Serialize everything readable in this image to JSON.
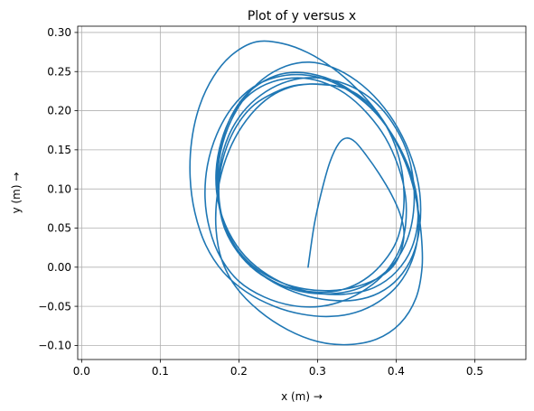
{
  "chart_data": {
    "type": "line",
    "title": "Plot of y versus x",
    "xlabel": "x (m)  →",
    "ylabel": "y (m)  →",
    "xlim": [
      -0.005,
      0.565
    ],
    "ylim": [
      -0.118,
      0.308
    ],
    "grid": true,
    "xticks": [
      0.0,
      0.1,
      0.2,
      0.3,
      0.4,
      0.5
    ],
    "xtick_labels": [
      "0.0",
      "0.1",
      "0.2",
      "0.3",
      "0.4",
      "0.5"
    ],
    "yticks": [
      -0.1,
      -0.05,
      0.0,
      0.05,
      0.1,
      0.15,
      0.2,
      0.25,
      0.3
    ],
    "ytick_labels": [
      "−0.10",
      "−0.05",
      "0.00",
      "0.05",
      "0.10",
      "0.15",
      "0.20",
      "0.25",
      "0.30"
    ],
    "series": [
      {
        "color": "#1f77b4",
        "points": [
          [
            0.288,
            0.0
          ],
          [
            0.296,
            0.055
          ],
          [
            0.306,
            0.1
          ],
          [
            0.316,
            0.135
          ],
          [
            0.327,
            0.158
          ],
          [
            0.337,
            0.165
          ],
          [
            0.348,
            0.16
          ],
          [
            0.362,
            0.143
          ],
          [
            0.378,
            0.12
          ],
          [
            0.394,
            0.093
          ],
          [
            0.405,
            0.068
          ],
          [
            0.41,
            0.045
          ],
          [
            0.406,
            0.02
          ],
          [
            0.395,
            0.0
          ],
          [
            0.375,
            -0.015
          ],
          [
            0.345,
            -0.026
          ],
          [
            0.315,
            -0.03
          ],
          [
            0.285,
            -0.028
          ],
          [
            0.255,
            -0.02
          ],
          [
            0.225,
            -0.004
          ],
          [
            0.2,
            0.02
          ],
          [
            0.183,
            0.05
          ],
          [
            0.175,
            0.085
          ],
          [
            0.176,
            0.12
          ],
          [
            0.185,
            0.155
          ],
          [
            0.2,
            0.185
          ],
          [
            0.22,
            0.208
          ],
          [
            0.245,
            0.223
          ],
          [
            0.27,
            0.232
          ],
          [
            0.3,
            0.234
          ],
          [
            0.33,
            0.23
          ],
          [
            0.355,
            0.218
          ],
          [
            0.378,
            0.195
          ],
          [
            0.395,
            0.165
          ],
          [
            0.406,
            0.13
          ],
          [
            0.41,
            0.095
          ],
          [
            0.408,
            0.062
          ],
          [
            0.4,
            0.032
          ],
          [
            0.385,
            0.008
          ],
          [
            0.365,
            -0.012
          ],
          [
            0.34,
            -0.026
          ],
          [
            0.312,
            -0.032
          ],
          [
            0.282,
            -0.03
          ],
          [
            0.252,
            -0.022
          ],
          [
            0.222,
            -0.005
          ],
          [
            0.198,
            0.02
          ],
          [
            0.181,
            0.052
          ],
          [
            0.174,
            0.09
          ],
          [
            0.176,
            0.13
          ],
          [
            0.187,
            0.168
          ],
          [
            0.205,
            0.198
          ],
          [
            0.228,
            0.22
          ],
          [
            0.255,
            0.235
          ],
          [
            0.285,
            0.242
          ],
          [
            0.315,
            0.24
          ],
          [
            0.345,
            0.23
          ],
          [
            0.372,
            0.212
          ],
          [
            0.395,
            0.185
          ],
          [
            0.413,
            0.15
          ],
          [
            0.422,
            0.11
          ],
          [
            0.422,
            0.07
          ],
          [
            0.414,
            0.035
          ],
          [
            0.398,
            0.006
          ],
          [
            0.375,
            -0.015
          ],
          [
            0.347,
            -0.029
          ],
          [
            0.316,
            -0.034
          ],
          [
            0.284,
            -0.032
          ],
          [
            0.252,
            -0.022
          ],
          [
            0.222,
            -0.004
          ],
          [
            0.197,
            0.023
          ],
          [
            0.18,
            0.057
          ],
          [
            0.173,
            0.096
          ],
          [
            0.175,
            0.138
          ],
          [
            0.186,
            0.178
          ],
          [
            0.205,
            0.213
          ],
          [
            0.23,
            0.24
          ],
          [
            0.26,
            0.257
          ],
          [
            0.29,
            0.262
          ],
          [
            0.32,
            0.255
          ],
          [
            0.35,
            0.238
          ],
          [
            0.378,
            0.212
          ],
          [
            0.402,
            0.178
          ],
          [
            0.42,
            0.138
          ],
          [
            0.43,
            0.095
          ],
          [
            0.43,
            0.052
          ],
          [
            0.421,
            0.015
          ],
          [
            0.403,
            -0.014
          ],
          [
            0.378,
            -0.033
          ],
          [
            0.348,
            -0.042
          ],
          [
            0.315,
            -0.042
          ],
          [
            0.28,
            -0.035
          ],
          [
            0.245,
            -0.02
          ],
          [
            0.215,
            0.002
          ],
          [
            0.192,
            0.032
          ],
          [
            0.177,
            0.068
          ],
          [
            0.172,
            0.108
          ],
          [
            0.176,
            0.15
          ],
          [
            0.188,
            0.188
          ],
          [
            0.207,
            0.218
          ],
          [
            0.232,
            0.238
          ],
          [
            0.26,
            0.248
          ],
          [
            0.292,
            0.247
          ],
          [
            0.325,
            0.236
          ],
          [
            0.355,
            0.216
          ],
          [
            0.382,
            0.188
          ],
          [
            0.405,
            0.152
          ],
          [
            0.422,
            0.11
          ],
          [
            0.428,
            0.066
          ],
          [
            0.42,
            0.025
          ],
          [
            0.4,
            -0.006
          ],
          [
            0.372,
            -0.026
          ],
          [
            0.34,
            -0.034
          ],
          [
            0.305,
            -0.034
          ],
          [
            0.27,
            -0.026
          ],
          [
            0.237,
            -0.01
          ],
          [
            0.208,
            0.014
          ],
          [
            0.187,
            0.045
          ],
          [
            0.174,
            0.082
          ],
          [
            0.171,
            0.122
          ],
          [
            0.178,
            0.162
          ],
          [
            0.193,
            0.197
          ],
          [
            0.215,
            0.222
          ],
          [
            0.243,
            0.237
          ],
          [
            0.275,
            0.242
          ],
          [
            0.305,
            0.237
          ],
          [
            0.335,
            0.222
          ],
          [
            0.362,
            0.198
          ],
          [
            0.386,
            0.166
          ],
          [
            0.403,
            0.128
          ],
          [
            0.412,
            0.09
          ],
          [
            0.412,
            0.054
          ],
          [
            0.405,
            0.024
          ],
          [
            0.39,
            -0.002
          ],
          [
            0.37,
            -0.022
          ],
          [
            0.34,
            -0.04
          ],
          [
            0.305,
            -0.05
          ],
          [
            0.268,
            -0.049
          ],
          [
            0.232,
            -0.038
          ],
          [
            0.2,
            -0.018
          ],
          [
            0.177,
            0.012
          ],
          [
            0.163,
            0.048
          ],
          [
            0.157,
            0.088
          ],
          [
            0.16,
            0.13
          ],
          [
            0.172,
            0.17
          ],
          [
            0.192,
            0.205
          ],
          [
            0.218,
            0.23
          ],
          [
            0.248,
            0.243
          ],
          [
            0.28,
            0.246
          ],
          [
            0.313,
            0.239
          ],
          [
            0.345,
            0.222
          ],
          [
            0.374,
            0.197
          ],
          [
            0.398,
            0.164
          ],
          [
            0.416,
            0.126
          ],
          [
            0.426,
            0.085
          ],
          [
            0.428,
            0.044
          ],
          [
            0.42,
            0.008
          ],
          [
            0.403,
            -0.022
          ],
          [
            0.378,
            -0.044
          ],
          [
            0.348,
            -0.058
          ],
          [
            0.315,
            -0.063
          ],
          [
            0.28,
            -0.06
          ],
          [
            0.245,
            -0.05
          ],
          [
            0.21,
            -0.032
          ],
          [
            0.18,
            -0.006
          ],
          [
            0.158,
            0.028
          ],
          [
            0.144,
            0.07
          ],
          [
            0.138,
            0.115
          ],
          [
            0.14,
            0.162
          ],
          [
            0.15,
            0.206
          ],
          [
            0.168,
            0.244
          ],
          [
            0.192,
            0.272
          ],
          [
            0.222,
            0.288
          ],
          [
            0.255,
            0.286
          ],
          [
            0.288,
            0.274
          ],
          [
            0.32,
            0.254
          ],
          [
            0.35,
            0.228
          ],
          [
            0.376,
            0.198
          ],
          [
            0.398,
            0.163
          ],
          [
            0.415,
            0.125
          ],
          [
            0.426,
            0.084
          ],
          [
            0.432,
            0.041
          ],
          [
            0.433,
            0.0
          ],
          [
            0.425,
            -0.04
          ],
          [
            0.405,
            -0.072
          ],
          [
            0.375,
            -0.092
          ],
          [
            0.338,
            -0.099
          ],
          [
            0.3,
            -0.095
          ],
          [
            0.262,
            -0.08
          ],
          [
            0.226,
            -0.056
          ],
          [
            0.196,
            -0.025
          ],
          [
            0.178,
            0.01
          ],
          [
            0.171,
            0.048
          ],
          [
            0.172,
            0.088
          ],
          [
            0.18,
            0.128
          ],
          [
            0.195,
            0.165
          ],
          [
            0.216,
            0.196
          ],
          [
            0.24,
            0.218
          ],
          [
            0.265,
            0.23
          ],
          [
            0.29,
            0.234
          ],
          [
            0.31,
            0.233
          ],
          [
            0.323,
            0.232
          ]
        ]
      }
    ]
  }
}
